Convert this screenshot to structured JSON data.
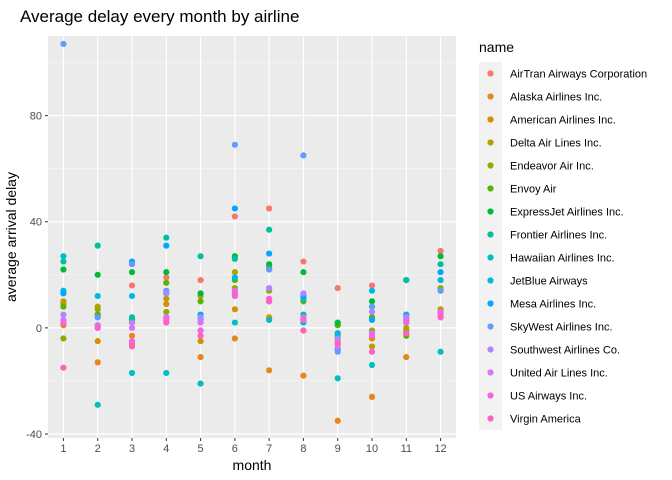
{
  "chart_data": {
    "type": "scatter",
    "title": "Average delay every month by airline",
    "xlabel": "month",
    "ylabel": "average arrival delay",
    "xlim": [
      0.55,
      12.45
    ],
    "ylim": [
      -41.5,
      110
    ],
    "x_ticks": [
      1,
      2,
      3,
      4,
      5,
      6,
      7,
      8,
      9,
      10,
      11,
      12
    ],
    "y_ticks": [
      -40,
      0,
      40,
      80
    ],
    "grid": true,
    "legend_position": "right",
    "legend_title": "name",
    "series": [
      {
        "name": "AirTran Airways Corporation",
        "color": "#F8766D",
        "points": [
          [
            1,
            9
          ],
          [
            2,
            5
          ],
          [
            3,
            16
          ],
          [
            4,
            19
          ],
          [
            5,
            18
          ],
          [
            6,
            42
          ],
          [
            7,
            45
          ],
          [
            8,
            25
          ],
          [
            9,
            15
          ],
          [
            10,
            16
          ],
          [
            11,
            4
          ],
          [
            12,
            29
          ]
        ]
      },
      {
        "name": "Alaska Airlines Inc.",
        "color": "#E7861B",
        "points": [
          [
            1,
            1
          ],
          [
            2,
            -13
          ],
          [
            3,
            -3
          ],
          [
            4,
            9
          ],
          [
            5,
            -11
          ],
          [
            6,
            -4
          ],
          [
            7,
            -16
          ],
          [
            8,
            -18
          ],
          [
            9,
            -35
          ],
          [
            10,
            -26
          ],
          [
            11,
            -11
          ],
          [
            12,
            4
          ]
        ]
      },
      {
        "name": "American Airlines Inc.",
        "color": "#D39200",
        "points": [
          [
            1,
            2
          ],
          [
            2,
            -5
          ],
          [
            3,
            -6
          ],
          [
            4,
            4
          ],
          [
            5,
            -5
          ],
          [
            6,
            7
          ],
          [
            7,
            4
          ],
          [
            8,
            -1
          ],
          [
            9,
            -5
          ],
          [
            10,
            -4
          ],
          [
            11,
            -2
          ],
          [
            12,
            5
          ]
        ]
      },
      {
        "name": "Delta Air Lines Inc.",
        "color": "#B8A000",
        "points": [
          [
            1,
            10
          ],
          [
            2,
            8
          ],
          [
            3,
            2
          ],
          [
            4,
            11
          ],
          [
            5,
            12
          ],
          [
            6,
            21
          ],
          [
            7,
            10
          ],
          [
            8,
            3
          ],
          [
            9,
            -2
          ],
          [
            10,
            -7
          ],
          [
            11,
            0
          ],
          [
            12,
            7
          ]
        ]
      },
      {
        "name": "Endeavor Air Inc.",
        "color": "#93AA00",
        "points": [
          [
            1,
            -4
          ],
          [
            2,
            7
          ],
          [
            3,
            3
          ],
          [
            4,
            6
          ],
          [
            5,
            -1
          ],
          [
            6,
            15
          ],
          [
            7,
            14
          ],
          [
            8,
            11
          ],
          [
            9,
            1
          ],
          [
            10,
            -1
          ],
          [
            11,
            -1
          ],
          [
            12,
            15
          ]
        ]
      },
      {
        "name": "Envoy Air",
        "color": "#5BB300",
        "points": [
          [
            1,
            8
          ],
          [
            2,
            5
          ],
          [
            3,
            3
          ],
          [
            4,
            17
          ],
          [
            5,
            10
          ],
          [
            6,
            18
          ],
          [
            7,
            23
          ],
          [
            8,
            10
          ],
          [
            9,
            1
          ],
          [
            10,
            4
          ],
          [
            11,
            -3
          ],
          [
            12,
            14
          ]
        ]
      },
      {
        "name": "ExpressJet Airlines Inc.",
        "color": "#00BA38",
        "points": [
          [
            1,
            22
          ],
          [
            2,
            20
          ],
          [
            3,
            21
          ],
          [
            4,
            21
          ],
          [
            5,
            13
          ],
          [
            6,
            27
          ],
          [
            7,
            24
          ],
          [
            8,
            21
          ],
          [
            9,
            2
          ],
          [
            10,
            10
          ],
          [
            11,
            18
          ],
          [
            12,
            27
          ]
        ]
      },
      {
        "name": "Frontier Airlines Inc.",
        "color": "#00C19F",
        "points": [
          [
            1,
            25
          ],
          [
            2,
            31
          ],
          [
            3,
            4
          ],
          [
            4,
            34
          ],
          [
            5,
            27
          ],
          [
            6,
            26
          ],
          [
            7,
            37
          ],
          [
            8,
            5
          ],
          [
            9,
            -3
          ],
          [
            10,
            8
          ],
          [
            11,
            18
          ],
          [
            12,
            24
          ]
        ]
      },
      {
        "name": "Hawaiian Airlines Inc.",
        "color": "#00BFC4",
        "points": [
          [
            1,
            27
          ],
          [
            2,
            -29
          ],
          [
            3,
            -17
          ],
          [
            4,
            -17
          ],
          [
            5,
            -21
          ],
          [
            6,
            2
          ],
          [
            7,
            3
          ],
          [
            8,
            2
          ],
          [
            9,
            -19
          ],
          [
            10,
            -14
          ],
          [
            11,
            2
          ],
          [
            12,
            -9
          ]
        ]
      },
      {
        "name": "JetBlue Airways",
        "color": "#00B9E3",
        "points": [
          [
            1,
            14
          ],
          [
            2,
            12
          ],
          [
            3,
            12
          ],
          [
            4,
            13
          ],
          [
            5,
            4
          ],
          [
            6,
            19
          ],
          [
            7,
            22
          ],
          [
            8,
            11
          ],
          [
            9,
            -2
          ],
          [
            10,
            14
          ],
          [
            11,
            3
          ],
          [
            12,
            18
          ]
        ]
      },
      {
        "name": "Mesa Airlines Inc.",
        "color": "#00A9FF",
        "points": [
          [
            1,
            13
          ],
          [
            2,
            4
          ],
          [
            3,
            25
          ],
          [
            4,
            31
          ],
          [
            5,
            5
          ],
          [
            6,
            45
          ],
          [
            7,
            28
          ],
          [
            8,
            12
          ],
          [
            9,
            -8
          ],
          [
            10,
            3
          ],
          [
            11,
            5
          ],
          [
            12,
            21
          ]
        ]
      },
      {
        "name": "SkyWest Airlines Inc.",
        "color": "#619CFF",
        "points": [
          [
            1,
            107
          ],
          [
            2,
            4
          ],
          [
            3,
            24
          ],
          [
            4,
            14
          ],
          [
            5,
            3
          ],
          [
            6,
            69
          ],
          [
            7,
            22
          ],
          [
            8,
            65
          ],
          [
            9,
            -9
          ],
          [
            10,
            8
          ],
          [
            11,
            4
          ],
          [
            12,
            14
          ]
        ]
      },
      {
        "name": "Southwest Airlines Co.",
        "color": "#AE87FF",
        "points": [
          [
            1,
            5
          ],
          [
            2,
            1
          ],
          [
            3,
            2
          ],
          [
            4,
            13
          ],
          [
            5,
            4
          ],
          [
            6,
            12
          ],
          [
            7,
            15
          ],
          [
            8,
            13
          ],
          [
            9,
            -4
          ],
          [
            10,
            6
          ],
          [
            11,
            4
          ],
          [
            12,
            6
          ]
        ]
      },
      {
        "name": "United Air Lines Inc.",
        "color": "#DB72FB",
        "points": [
          [
            1,
            3
          ],
          [
            2,
            1
          ],
          [
            3,
            0
          ],
          [
            4,
            4
          ],
          [
            5,
            2
          ],
          [
            6,
            14
          ],
          [
            7,
            10
          ],
          [
            8,
            4
          ],
          [
            9,
            -7
          ],
          [
            10,
            -2
          ],
          [
            11,
            4
          ],
          [
            12,
            5
          ]
        ]
      },
      {
        "name": "US Airways Inc.",
        "color": "#F564E3",
        "points": [
          [
            1,
            2
          ],
          [
            2,
            0
          ],
          [
            3,
            -5
          ],
          [
            4,
            3
          ],
          [
            5,
            -1
          ],
          [
            6,
            12
          ],
          [
            7,
            11
          ],
          [
            8,
            3
          ],
          [
            9,
            -6
          ],
          [
            10,
            -3
          ],
          [
            11,
            2
          ],
          [
            12,
            6
          ]
        ]
      },
      {
        "name": "Virgin America",
        "color": "#FF61C3",
        "points": [
          [
            1,
            -15
          ],
          [
            2,
            0
          ],
          [
            3,
            -7
          ],
          [
            4,
            2
          ],
          [
            5,
            -3
          ],
          [
            6,
            13
          ],
          [
            7,
            10
          ],
          [
            8,
            -1
          ],
          [
            9,
            -6
          ],
          [
            10,
            -9
          ],
          [
            11,
            -2
          ],
          [
            12,
            4
          ]
        ]
      }
    ]
  }
}
